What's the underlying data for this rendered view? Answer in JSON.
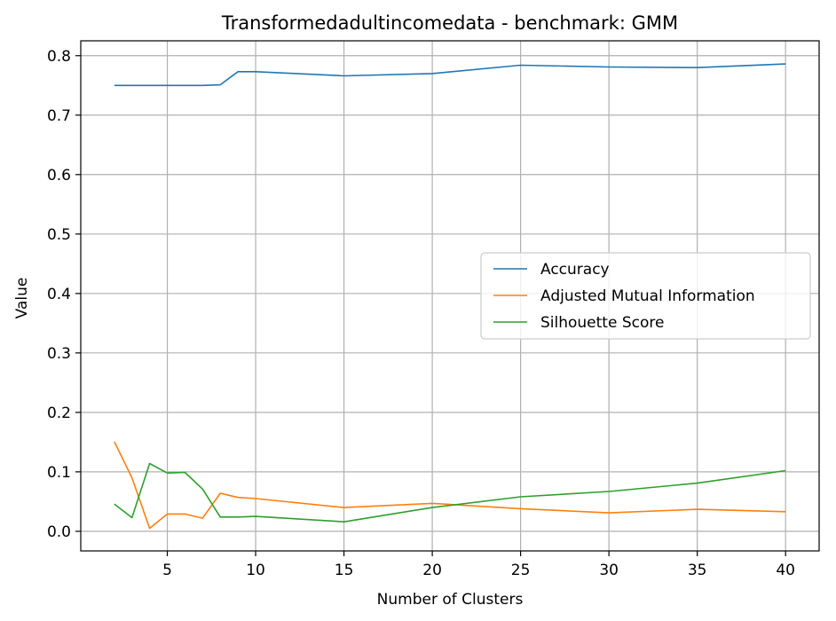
{
  "chart_data": {
    "type": "line",
    "title": "Transformedadultincomedata - benchmark: GMM",
    "xlabel": "Number of Clusters",
    "ylabel": "Value",
    "xlim": [
      0.1,
      41.9
    ],
    "ylim": [
      -0.033,
      0.825
    ],
    "xticks": [
      5,
      10,
      15,
      20,
      25,
      30,
      35,
      40
    ],
    "yticks": [
      0.0,
      0.1,
      0.2,
      0.3,
      0.4,
      0.5,
      0.6,
      0.7,
      0.8
    ],
    "xtick_labels": [
      "5",
      "10",
      "15",
      "20",
      "25",
      "30",
      "35",
      "40"
    ],
    "ytick_labels": [
      "0.0",
      "0.1",
      "0.2",
      "0.3",
      "0.4",
      "0.5",
      "0.6",
      "0.7",
      "0.8"
    ],
    "grid": true,
    "legend_position": "center-right",
    "x": [
      2,
      3,
      4,
      5,
      6,
      7,
      8,
      9,
      10,
      15,
      20,
      25,
      30,
      35,
      40
    ],
    "series": [
      {
        "name": "Accuracy",
        "color": "#1f77b4",
        "values": [
          0.75,
          0.75,
          0.75,
          0.75,
          0.75,
          0.75,
          0.751,
          0.773,
          0.773,
          0.766,
          0.77,
          0.784,
          0.781,
          0.78,
          0.786
        ]
      },
      {
        "name": "Adjusted Mutual Information",
        "color": "#ff7f0e",
        "values": [
          0.151,
          0.09,
          0.005,
          0.029,
          0.029,
          0.022,
          0.064,
          0.057,
          0.055,
          0.04,
          0.047,
          0.038,
          0.031,
          0.037,
          0.033
        ]
      },
      {
        "name": "Silhouette Score",
        "color": "#2ca02c",
        "values": [
          0.046,
          0.023,
          0.114,
          0.098,
          0.099,
          0.071,
          0.024,
          0.024,
          0.025,
          0.016,
          0.04,
          0.058,
          0.067,
          0.081,
          0.102
        ]
      }
    ]
  }
}
